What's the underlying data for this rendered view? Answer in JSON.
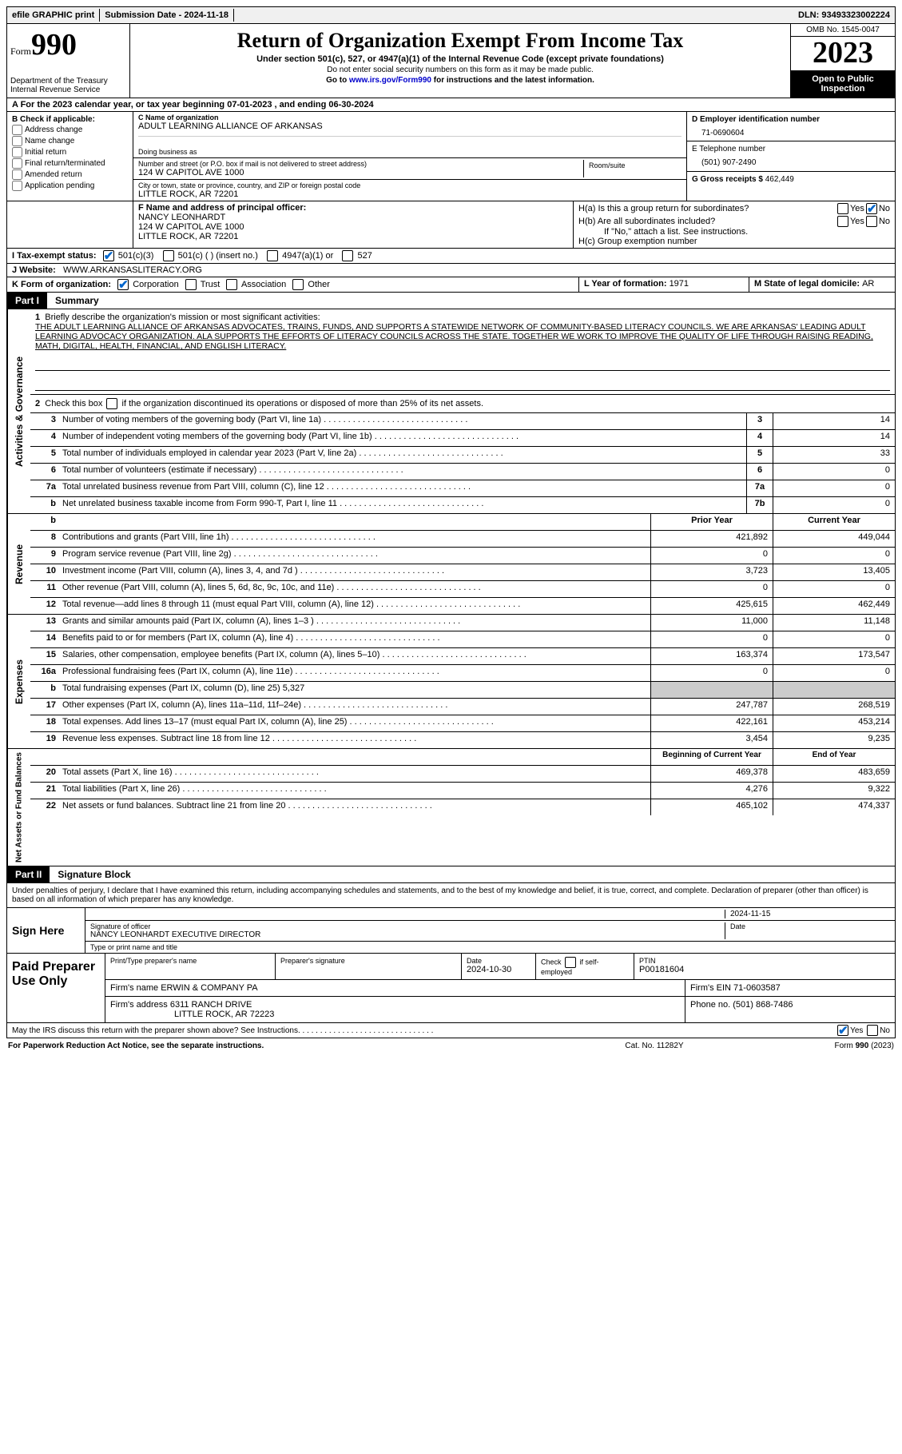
{
  "topbar": {
    "efile": "efile GRAPHIC print",
    "submission_label": "Submission Date - ",
    "submission_date": "2024-11-18",
    "dln_label": "DLN: ",
    "dln": "93493323002224"
  },
  "header": {
    "form_small": "Form",
    "form_big": "990",
    "dept1": "Department of the Treasury",
    "dept2": "Internal Revenue Service",
    "title": "Return of Organization Exempt From Income Tax",
    "subtitle": "Under section 501(c), 527, or 4947(a)(1) of the Internal Revenue Code (except private foundations)",
    "note1": "Do not enter social security numbers on this form as it may be made public.",
    "note2_pre": "Go to ",
    "note2_link": "www.irs.gov/Form990",
    "note2_post": " for instructions and the latest information.",
    "omb": "OMB No. 1545-0047",
    "year": "2023",
    "open": "Open to Public Inspection"
  },
  "row_a": {
    "text_pre": "A  For the 2023 calendar year, or tax year beginning ",
    "begin": "07-01-2023",
    "mid": "   , and ending ",
    "end": "06-30-2024"
  },
  "section_b": {
    "header": "B Check if applicable:",
    "opts": [
      "Address change",
      "Name change",
      "Initial return",
      "Final return/terminated",
      "Amended return",
      "Application pending"
    ],
    "c_label": "C Name of organization",
    "c_name": "ADULT LEARNING ALLIANCE OF ARKANSAS",
    "dba_label": "Doing business as",
    "addr_label": "Number and street (or P.O. box if mail is not delivered to street address)",
    "addr": "124 W CAPITOL AVE 1000",
    "room_label": "Room/suite",
    "city_label": "City or town, state or province, country, and ZIP or foreign postal code",
    "city": "LITTLE ROCK, AR   72201",
    "d_label": "D Employer identification number",
    "d_ein": "71-0690604",
    "e_label": "E Telephone number",
    "e_phone": "(501) 907-2490",
    "g_label": "G Gross receipts $ ",
    "g_amount": "462,449"
  },
  "section_f": {
    "f_label": "F Name and address of principal officer:",
    "f_name": "NANCY LEONHARDT",
    "f_addr1": "124 W CAPITOL AVE 1000",
    "f_addr2": "LITTLE ROCK, AR  72201",
    "ha_label": "H(a)  Is this a group return for subordinates?",
    "yes": "Yes",
    "no": "No",
    "hb_label": "H(b)  Are all subordinates included?",
    "hb_note": "If \"No,\" attach a list. See instructions.",
    "hc_label": "H(c)  Group exemption number"
  },
  "row_i": {
    "label": "I   Tax-exempt status:",
    "opt1": "501(c)(3)",
    "opt2": "501(c) (  ) (insert no.)",
    "opt3": "4947(a)(1) or",
    "opt4": "527"
  },
  "row_j": {
    "label": "J   Website:",
    "value": "WWW.ARKANSASLITERACY.ORG"
  },
  "row_k": {
    "label": "K Form of organization:",
    "opts": [
      "Corporation",
      "Trust",
      "Association",
      "Other"
    ],
    "l_label": "L Year of formation: ",
    "l_val": "1971",
    "m_label": "M State of legal domicile: ",
    "m_val": "AR"
  },
  "part1": {
    "label": "Part I",
    "title": "Summary"
  },
  "summary": {
    "side1": "Activities & Governance",
    "side2": "Revenue",
    "side3": "Expenses",
    "side4": "Net Assets or Fund Balances",
    "l1_label": "Briefly describe the organization's mission or most significant activities:",
    "l1_mission": "THE ADULT LEARNING ALLIANCE OF ARKANSAS ADVOCATES, TRAINS, FUNDS, AND SUPPORTS A STATEWIDE NETWORK OF COMMUNITY-BASED LITERACY COUNCILS. WE ARE ARKANSAS' LEADING ADULT LEARNING ADVOCACY ORGANIZATION. ALA SUPPORTS THE EFFORTS OF LITERACY COUNCILS ACROSS THE STATE. TOGETHER WE WORK TO IMPROVE THE QUALITY OF LIFE THROUGH RAISING READING, MATH, DIGITAL, HEALTH, FINANCIAL, AND ENGLISH LITERACY.",
    "l2": "Check this box         if the organization discontinued its operations or disposed of more than 25% of its net assets.",
    "lines_gov": [
      {
        "n": "3",
        "d": "Number of voting members of the governing body (Part VI, line 1a)",
        "b": "3",
        "v": "14"
      },
      {
        "n": "4",
        "d": "Number of independent voting members of the governing body (Part VI, line 1b)",
        "b": "4",
        "v": "14"
      },
      {
        "n": "5",
        "d": "Total number of individuals employed in calendar year 2023 (Part V, line 2a)",
        "b": "5",
        "v": "33"
      },
      {
        "n": "6",
        "d": "Total number of volunteers (estimate if necessary)",
        "b": "6",
        "v": "0"
      },
      {
        "n": "7a",
        "d": "Total unrelated business revenue from Part VIII, column (C), line 12",
        "b": "7a",
        "v": "0"
      },
      {
        "n": "b",
        "d": "Net unrelated business taxable income from Form 990-T, Part I, line 11",
        "b": "7b",
        "v": "0"
      }
    ],
    "col_prior": "Prior Year",
    "col_current": "Current Year",
    "lines_rev": [
      {
        "n": "8",
        "d": "Contributions and grants (Part VIII, line 1h)",
        "p": "421,892",
        "c": "449,044"
      },
      {
        "n": "9",
        "d": "Program service revenue (Part VIII, line 2g)",
        "p": "0",
        "c": "0"
      },
      {
        "n": "10",
        "d": "Investment income (Part VIII, column (A), lines 3, 4, and 7d )",
        "p": "3,723",
        "c": "13,405"
      },
      {
        "n": "11",
        "d": "Other revenue (Part VIII, column (A), lines 5, 6d, 8c, 9c, 10c, and 11e)",
        "p": "0",
        "c": "0"
      },
      {
        "n": "12",
        "d": "Total revenue—add lines 8 through 11 (must equal Part VIII, column (A), line 12)",
        "p": "425,615",
        "c": "462,449"
      }
    ],
    "lines_exp": [
      {
        "n": "13",
        "d": "Grants and similar amounts paid (Part IX, column (A), lines 1–3 )",
        "p": "11,000",
        "c": "11,148"
      },
      {
        "n": "14",
        "d": "Benefits paid to or for members (Part IX, column (A), line 4)",
        "p": "0",
        "c": "0"
      },
      {
        "n": "15",
        "d": "Salaries, other compensation, employee benefits (Part IX, column (A), lines 5–10)",
        "p": "163,374",
        "c": "173,547"
      },
      {
        "n": "16a",
        "d": "Professional fundraising fees (Part IX, column (A), line 11e)",
        "p": "0",
        "c": "0"
      },
      {
        "n": "b",
        "d": "Total fundraising expenses (Part IX, column (D), line 25) 5,327",
        "shaded": true
      },
      {
        "n": "17",
        "d": "Other expenses (Part IX, column (A), lines 11a–11d, 11f–24e)",
        "p": "247,787",
        "c": "268,519"
      },
      {
        "n": "18",
        "d": "Total expenses. Add lines 13–17 (must equal Part IX, column (A), line 25)",
        "p": "422,161",
        "c": "453,214"
      },
      {
        "n": "19",
        "d": "Revenue less expenses. Subtract line 18 from line 12",
        "p": "3,454",
        "c": "9,235"
      }
    ],
    "col_begin": "Beginning of Current Year",
    "col_end": "End of Year",
    "lines_net": [
      {
        "n": "20",
        "d": "Total assets (Part X, line 16)",
        "p": "469,378",
        "c": "483,659"
      },
      {
        "n": "21",
        "d": "Total liabilities (Part X, line 26)",
        "p": "4,276",
        "c": "9,322"
      },
      {
        "n": "22",
        "d": "Net assets or fund balances. Subtract line 21 from line 20",
        "p": "465,102",
        "c": "474,337"
      }
    ]
  },
  "part2": {
    "label": "Part II",
    "title": "Signature Block",
    "declaration": "Under penalties of perjury, I declare that I have examined this return, including accompanying schedules and statements, and to the best of my knowledge and belief, it is true, correct, and complete. Declaration of preparer (other than officer) is based on all information of which preparer has any knowledge."
  },
  "sign": {
    "label": "Sign Here",
    "date": "2024-11-15",
    "sig_label": "Signature of officer",
    "officer": "NANCY LEONHARDT  EXECUTIVE DIRECTOR",
    "type_label": "Type or print name and title",
    "date_label": "Date"
  },
  "paid": {
    "label": "Paid Preparer Use Only",
    "h1": "Print/Type preparer's name",
    "h2": "Preparer's signature",
    "h3": "Date",
    "h3v": "2024-10-30",
    "h4": "Check         if self-employed",
    "h5": "PTIN",
    "h5v": "P00181604",
    "firm_label": "Firm's name     ",
    "firm": "ERWIN & COMPANY PA",
    "ein_label": "Firm's EIN  ",
    "ein": "71-0603587",
    "addr_label": "Firm's address ",
    "addr1": "6311 RANCH DRIVE",
    "addr2": "LITTLE ROCK, AR  72223",
    "phone_label": "Phone no. ",
    "phone": "(501) 868-7486"
  },
  "footer": {
    "discuss": "May the IRS discuss this return with the preparer shown above? See Instructions.",
    "yes": "Yes",
    "no": "No",
    "paperwork": "For Paperwork Reduction Act Notice, see the separate instructions.",
    "cat": "Cat. No. 11282Y",
    "form": "Form 990 (2023)"
  }
}
